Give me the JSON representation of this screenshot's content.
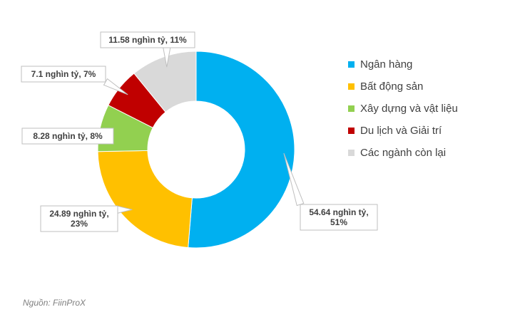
{
  "chart_data": {
    "type": "pie",
    "donut": true,
    "title": "",
    "unit": "nghìn tỷ",
    "slices": [
      {
        "name": "Ngân hàng",
        "value": 54.64,
        "percent": 51,
        "color": "#00B0F0",
        "label_lines": [
          "54.64 nghìn tỷ,",
          "51%"
        ]
      },
      {
        "name": "Bất động sản",
        "value": 24.89,
        "percent": 23,
        "color": "#FFC000",
        "label_lines": [
          "24.89 nghìn tỷ,",
          "23%"
        ]
      },
      {
        "name": "Xây dựng và vật liệu",
        "value": 8.28,
        "percent": 8,
        "color": "#92D050",
        "label_lines": [
          "8.28 nghìn tỷ, 8%"
        ]
      },
      {
        "name": "Du lịch và Giải trí",
        "value": 7.1,
        "percent": 7,
        "color": "#C00000",
        "label_lines": [
          "7.1 nghìn tỷ, 7%"
        ]
      },
      {
        "name": "Các ngành còn lại",
        "value": 11.58,
        "percent": 11,
        "color": "#D9D9D9",
        "label_lines": [
          "11.58 nghìn tỷ, 11%"
        ]
      }
    ],
    "legend_position": "right"
  },
  "source": "Nguồn: FiinProX"
}
